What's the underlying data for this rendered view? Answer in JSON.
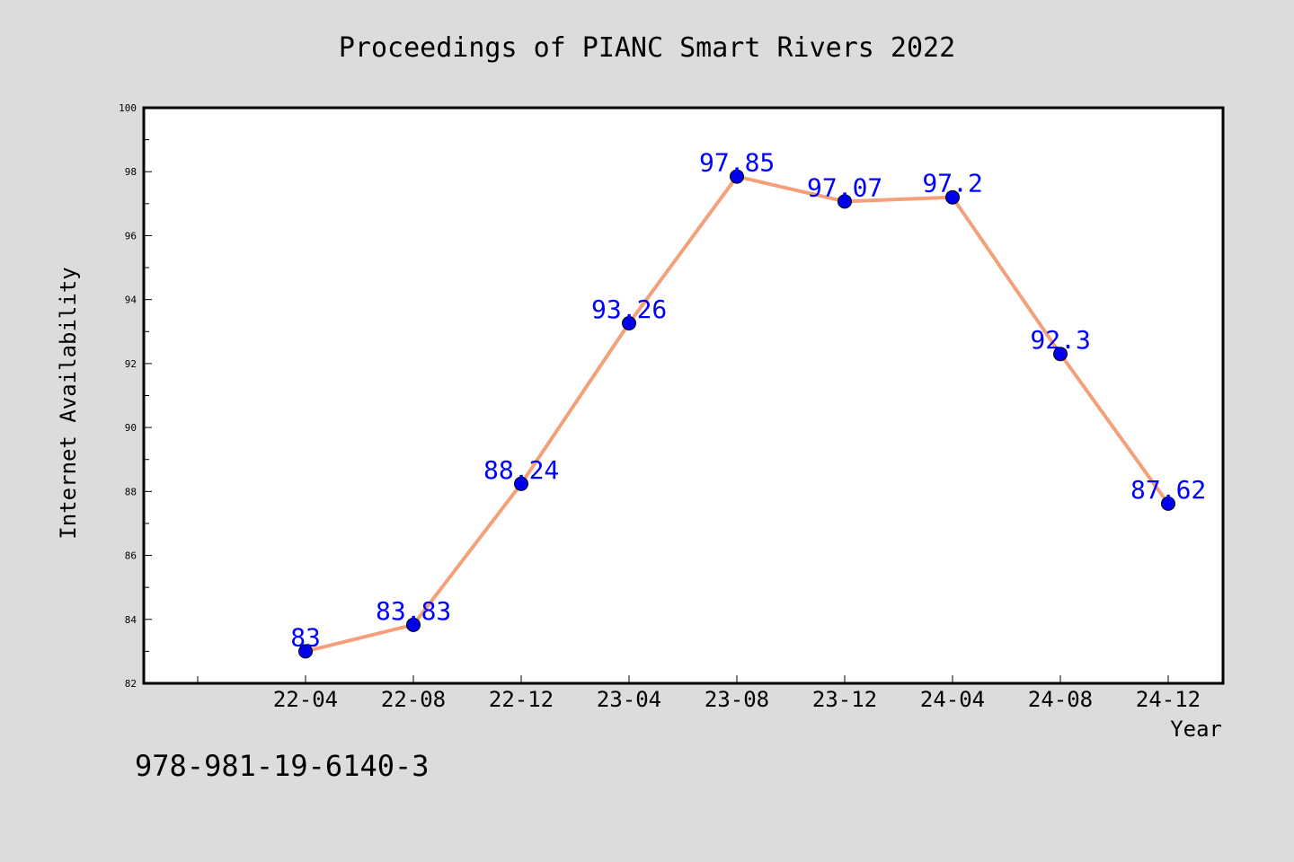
{
  "chart_data": {
    "type": "line",
    "title": "Proceedings of PIANC Smart Rivers 2022",
    "xlabel": "Year",
    "ylabel": "Internet Availability",
    "categories": [
      "22-04",
      "22-08",
      "22-12",
      "23-04",
      "23-08",
      "23-12",
      "24-04",
      "24-08",
      "24-12"
    ],
    "series": [
      {
        "values": [
          83,
          83.83,
          88.24,
          93.26,
          97.85,
          97.07,
          97.2,
          92.3,
          87.62
        ],
        "labels": [
          "83",
          "83.83",
          "88.24",
          "93.26",
          "97.85",
          "97.07",
          "97.2",
          "92.3",
          "87.62"
        ],
        "line_color": "#f4a07a",
        "marker_color": "#0000ee",
        "label_color": "#0000ff"
      }
    ],
    "ylim": [
      82,
      100
    ],
    "yticks": [
      "82",
      "84",
      "86",
      "88",
      "90",
      "92",
      "94",
      "96",
      "98",
      "100"
    ],
    "grid": false,
    "legend": "none"
  },
  "footer_text": "978-981-19-6140-3",
  "colors": {
    "background": "#dcdcdc",
    "plot_background": "#ffffff",
    "axis": "#000000",
    "text": "#000000"
  }
}
